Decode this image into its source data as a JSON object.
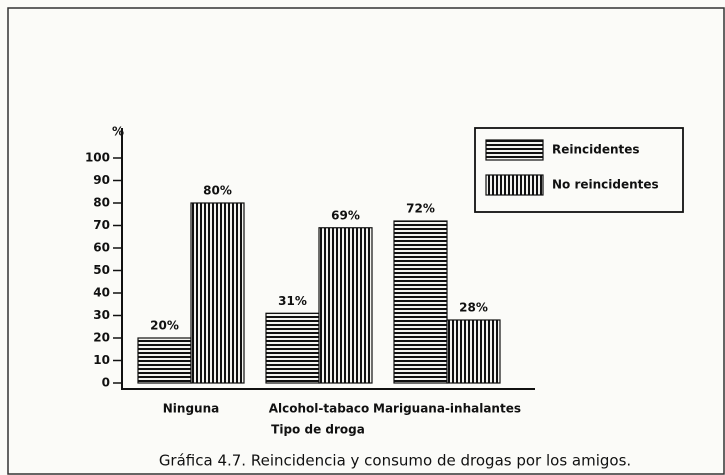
{
  "chart_data": {
    "type": "bar",
    "title": "Gráfica 4.7.  Reincidencia y consumo de drogas por los amigos.",
    "ylabel": "%",
    "xlabel": "Tipo de droga",
    "categories": [
      "Ninguna",
      "Alcohol-tabaco",
      "Mariguana-inhalantes"
    ],
    "series": [
      {
        "name": "Reincidentes",
        "color": "#111111",
        "values": [
          20,
          31,
          72
        ],
        "value_labels": [
          "20%",
          "31%",
          "72%"
        ]
      },
      {
        "name": "No reincidentes",
        "color": "#111111",
        "values": [
          80,
          69,
          28
        ],
        "value_labels": [
          "80%",
          "69%",
          "28%"
        ]
      }
    ],
    "ylim": [
      0,
      100
    ],
    "yticks": [
      0,
      10,
      20,
      30,
      40,
      50,
      60,
      70,
      80,
      90,
      100
    ],
    "legend": "top-right"
  }
}
